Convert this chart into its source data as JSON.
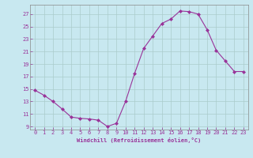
{
  "x": [
    0,
    1,
    2,
    3,
    4,
    5,
    6,
    7,
    8,
    9,
    10,
    11,
    12,
    13,
    14,
    15,
    16,
    17,
    18,
    19,
    20,
    21,
    22,
    23
  ],
  "y": [
    14.8,
    14.0,
    13.0,
    11.8,
    10.5,
    10.3,
    10.2,
    10.0,
    9.0,
    9.5,
    13.0,
    17.5,
    21.5,
    23.5,
    25.5,
    26.2,
    27.5,
    27.4,
    27.0,
    24.5,
    21.2,
    19.5,
    17.8,
    17.8
  ],
  "line_color": "#993399",
  "marker": "D",
  "marker_size": 2,
  "bg_color": "#c8e8f0",
  "grid_color": "#aacccc",
  "xlabel": "Windchill (Refroidissement éolien,°C)",
  "xlim": [
    -0.5,
    23.5
  ],
  "ylim": [
    8.5,
    28.5
  ],
  "yticks": [
    9,
    11,
    13,
    15,
    17,
    19,
    21,
    23,
    25,
    27
  ],
  "xticks": [
    0,
    1,
    2,
    3,
    4,
    5,
    6,
    7,
    8,
    9,
    10,
    11,
    12,
    13,
    14,
    15,
    16,
    17,
    18,
    19,
    20,
    21,
    22,
    23
  ],
  "tick_color": "#993399",
  "label_color": "#993399",
  "label_fontsize": 5.0,
  "tick_fontsize": 5.0,
  "linewidth": 0.8
}
